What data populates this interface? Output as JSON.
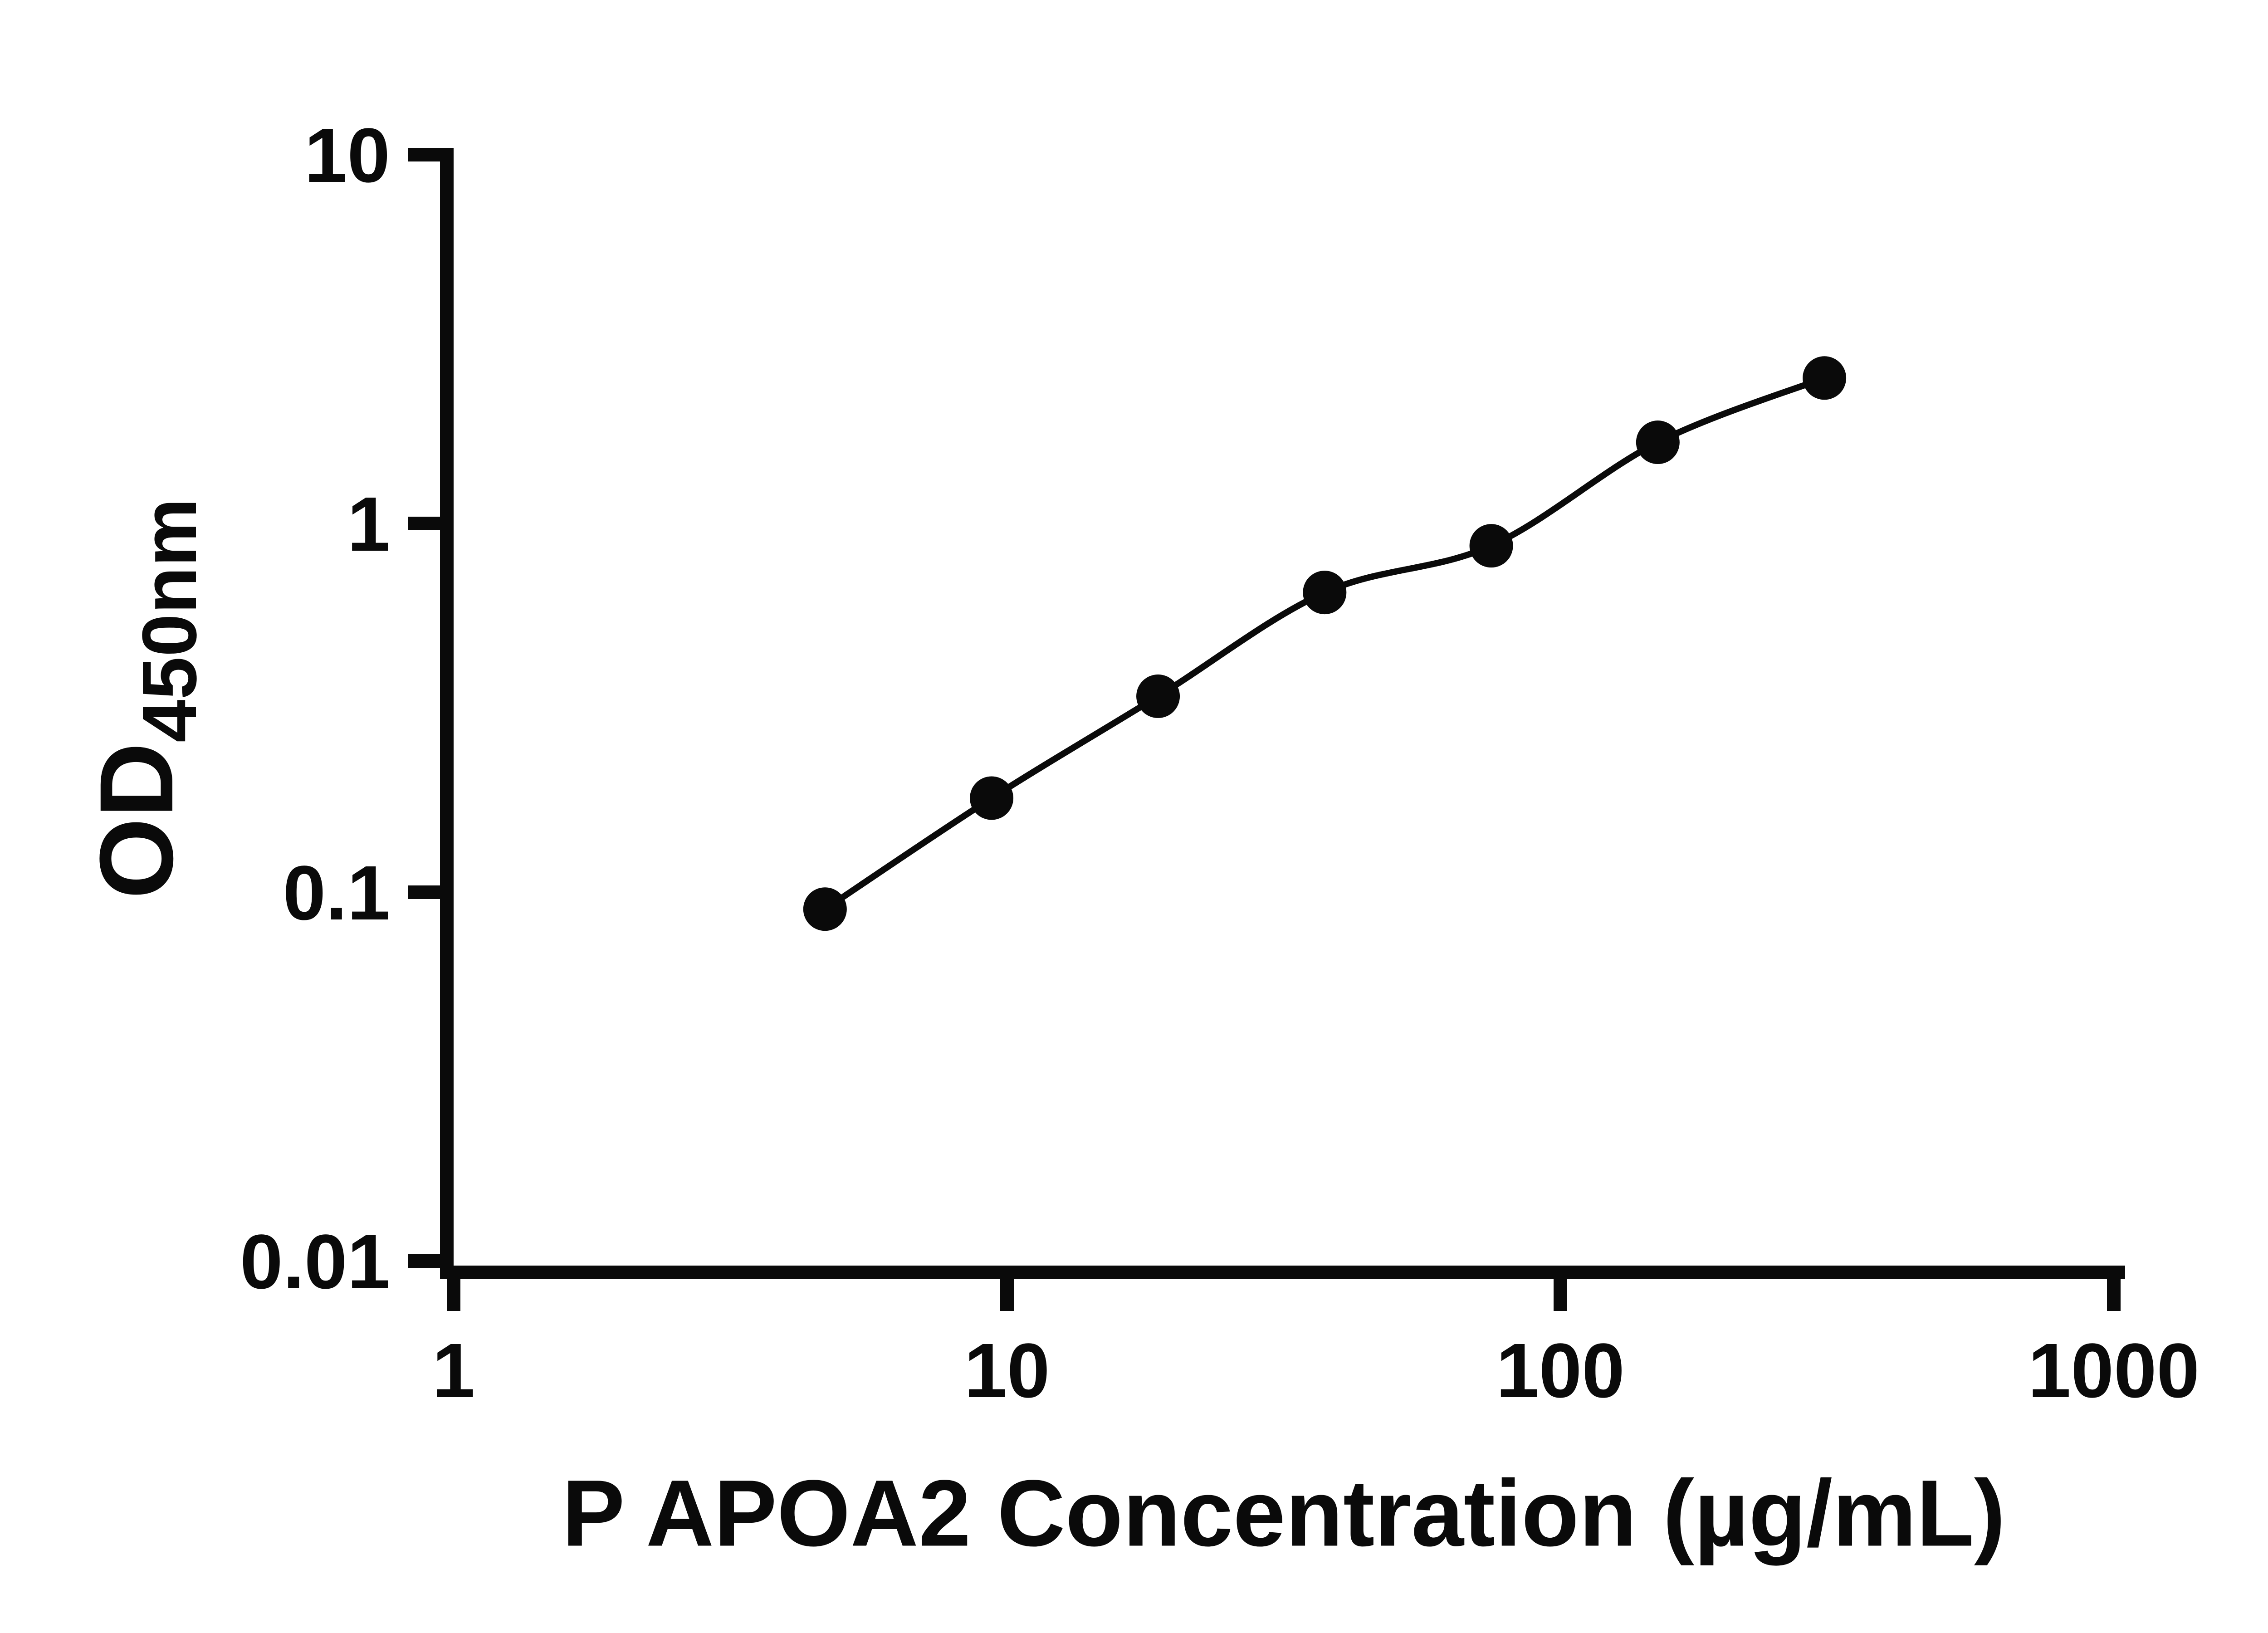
{
  "figure": {
    "background": "#ffffff"
  },
  "chart": {
    "xlabel": "P APOA2 Concentration (µg/mL)",
    "ylabel_main": "OD",
    "ylabel_sub": "450nm"
  },
  "chart_data": {
    "type": "scatter",
    "title": "",
    "xlabel": "P APOA2 Concentration (µg/mL)",
    "ylabel": "OD450nm",
    "x_scale": "log10",
    "y_scale": "log10",
    "xlim": [
      1,
      1000
    ],
    "ylim": [
      0.01,
      10
    ],
    "x_ticks": [
      "1",
      "10",
      "100",
      "1000"
    ],
    "y_ticks": [
      "0.01",
      "0.1",
      "1",
      "10"
    ],
    "grid": false,
    "legend": "none",
    "curve": "smooth-fit-through-points",
    "x": [
      4.69,
      9.38,
      18.75,
      37.5,
      75,
      150,
      300
    ],
    "y": [
      0.09,
      0.18,
      0.34,
      0.65,
      0.87,
      1.66,
      2.48
    ],
    "marker": "filled-circle",
    "marker_color": "#0a0a0a",
    "line_color": "#0a0a0a",
    "axis_color": "#0a0a0a"
  }
}
